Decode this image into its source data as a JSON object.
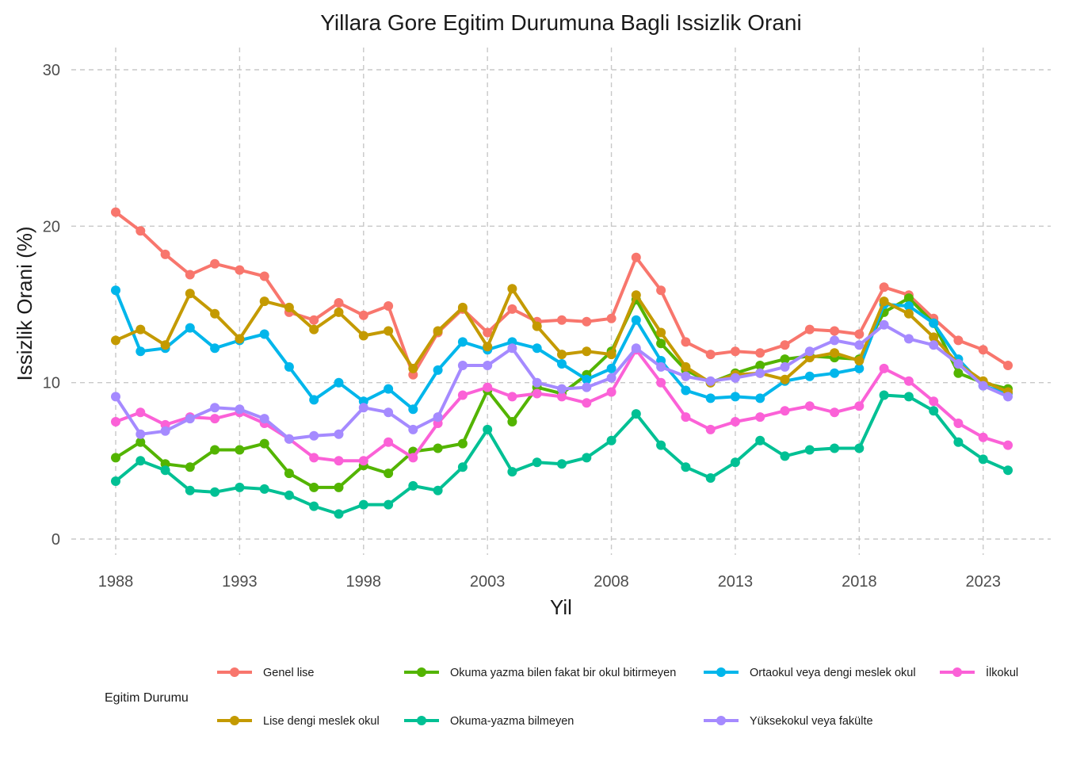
{
  "chart_data": {
    "type": "line",
    "title": "Yillara Gore Egitim Durumuna Bagli Issizlik Orani",
    "xlabel": "Yil",
    "ylabel": "Issizlik Orani (%)",
    "xlim": [
      1988,
      2024
    ],
    "ylim": [
      0,
      30
    ],
    "x_ticks": [
      1988,
      1993,
      1998,
      2003,
      2008,
      2013,
      2018,
      2023
    ],
    "y_ticks": [
      0,
      10,
      20,
      30
    ],
    "grid": true,
    "legend_title": "Egitim Durumu",
    "legend_position": "bottom",
    "x": [
      1988,
      1989,
      1990,
      1991,
      1992,
      1993,
      1994,
      1995,
      1996,
      1997,
      1998,
      1999,
      2000,
      2001,
      2002,
      2003,
      2004,
      2005,
      2006,
      2007,
      2008,
      2009,
      2010,
      2011,
      2012,
      2013,
      2014,
      2015,
      2016,
      2017,
      2018,
      2019,
      2020,
      2021,
      2022,
      2023,
      2024
    ],
    "series": [
      {
        "name": "Genel lise",
        "color": "#F8766D",
        "values": [
          20.9,
          19.7,
          18.2,
          16.9,
          17.6,
          17.2,
          16.8,
          14.5,
          14.0,
          15.1,
          14.3,
          14.9,
          10.5,
          13.2,
          14.7,
          13.2,
          14.7,
          13.9,
          14.0,
          13.9,
          14.1,
          18.0,
          15.9,
          12.6,
          11.8,
          12.0,
          11.9,
          12.4,
          13.4,
          13.3,
          13.1,
          16.1,
          15.6,
          14.1,
          12.7,
          12.1,
          11.1
        ]
      },
      {
        "name": "Okuma yazma bilen fakat bir okul bitirmeyen",
        "color": "#53B400",
        "values": [
          5.2,
          6.2,
          4.8,
          4.6,
          5.7,
          5.7,
          6.1,
          4.2,
          3.3,
          3.3,
          4.7,
          4.2,
          5.6,
          5.8,
          6.1,
          9.5,
          7.5,
          9.7,
          9.3,
          10.5,
          12.0,
          15.3,
          12.5,
          10.8,
          10.0,
          10.6,
          11.1,
          11.5,
          11.7,
          11.6,
          11.5,
          14.5,
          15.4,
          13.8,
          10.6,
          10.0,
          9.6
        ]
      },
      {
        "name": "Ortaokul veya dengi meslek okul",
        "color": "#00B6EB",
        "values": [
          15.9,
          12.0,
          12.2,
          13.5,
          12.2,
          12.7,
          13.1,
          11.0,
          8.9,
          10.0,
          8.8,
          9.6,
          8.3,
          10.8,
          12.6,
          12.1,
          12.6,
          12.2,
          11.2,
          10.2,
          10.9,
          14.0,
          11.4,
          9.5,
          9.0,
          9.1,
          9.0,
          10.1,
          10.4,
          10.6,
          10.9,
          15.0,
          14.9,
          13.8,
          11.5,
          9.8,
          9.3
        ]
      },
      {
        "name": "İlkokul",
        "color": "#FB61D7",
        "values": [
          7.5,
          8.1,
          7.3,
          7.8,
          7.7,
          8.1,
          7.4,
          6.4,
          5.2,
          5.0,
          5.0,
          6.2,
          5.2,
          7.4,
          9.2,
          9.7,
          9.1,
          9.3,
          9.1,
          8.7,
          9.4,
          12.1,
          10.0,
          7.8,
          7.0,
          7.5,
          7.8,
          8.2,
          8.5,
          8.1,
          8.5,
          10.9,
          10.1,
          8.8,
          7.4,
          6.5,
          6.0
        ]
      },
      {
        "name": "Lise dengi meslek okul",
        "color": "#C49A00",
        "values": [
          12.7,
          13.4,
          12.4,
          15.7,
          14.4,
          12.8,
          15.2,
          14.8,
          13.4,
          14.5,
          13.0,
          13.3,
          10.9,
          13.3,
          14.8,
          12.3,
          16.0,
          13.6,
          11.8,
          12.0,
          11.8,
          15.6,
          13.2,
          11.0,
          10.0,
          10.5,
          10.6,
          10.2,
          11.6,
          11.9,
          11.4,
          15.2,
          14.4,
          12.9,
          11.2,
          10.1,
          9.4
        ]
      },
      {
        "name": "Okuma-yazma bilmeyen",
        "color": "#00C094",
        "values": [
          3.7,
          5.0,
          4.4,
          3.1,
          3.0,
          3.3,
          3.2,
          2.8,
          2.1,
          1.6,
          2.2,
          2.2,
          3.4,
          3.1,
          4.6,
          7.0,
          4.3,
          4.9,
          4.8,
          5.2,
          6.3,
          8.0,
          6.0,
          4.6,
          3.9,
          4.9,
          6.3,
          5.3,
          5.7,
          5.8,
          5.8,
          9.2,
          9.1,
          8.2,
          6.2,
          5.1,
          4.4
        ]
      },
      {
        "name": "Yüksekokul veya fakülte",
        "color": "#A58AFF",
        "values": [
          9.1,
          6.7,
          6.9,
          7.7,
          8.4,
          8.3,
          7.7,
          6.4,
          6.6,
          6.7,
          8.4,
          8.1,
          7.0,
          7.8,
          11.1,
          11.1,
          12.2,
          10.0,
          9.6,
          9.7,
          10.3,
          12.2,
          11.0,
          10.4,
          10.1,
          10.3,
          10.6,
          11.0,
          12.0,
          12.7,
          12.4,
          13.7,
          12.8,
          12.4,
          11.2,
          9.8,
          9.1
        ]
      }
    ]
  }
}
